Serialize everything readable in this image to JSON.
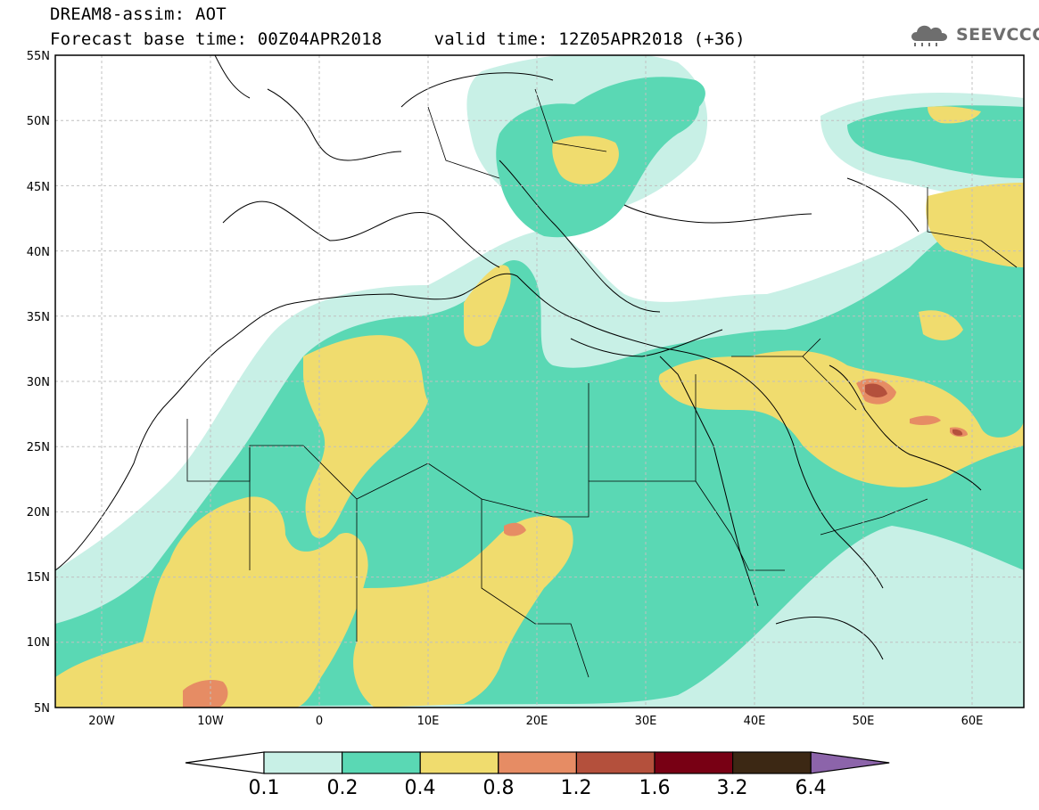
{
  "header": {
    "line1": "DREAM8-assim: AOT",
    "line2": "Forecast base time: 00Z04APR2018     valid time: 12Z05APR2018 (+36)"
  },
  "logo": {
    "text": "SEEVCCC",
    "icon": "cloud-rain-icon",
    "color": "#6e6e6e"
  },
  "axes": {
    "lat_labels": [
      "55N",
      "50N",
      "45N",
      "40N",
      "35N",
      "30N",
      "25N",
      "20N",
      "15N",
      "10N",
      "5N"
    ],
    "lon_labels": [
      "20W",
      "10W",
      "0",
      "10E",
      "20E",
      "30E",
      "40E",
      "50E",
      "60E"
    ]
  },
  "colorbar": {
    "labels": [
      "0.1",
      "0.2",
      "0.4",
      "0.8",
      "1.2",
      "1.6",
      "3.2",
      "6.4"
    ],
    "colors": [
      "#ffffff",
      "#c8f0e6",
      "#5ad8b4",
      "#f0dc6e",
      "#e68c64",
      "#b4503c",
      "#780014",
      "#3c2814",
      "#8c64aa"
    ]
  },
  "palette": {
    "level_01": "#c8f0e6",
    "level_02": "#5ad8b4",
    "level_04": "#f0dc6e",
    "level_08": "#e68c64",
    "level_12": "#b4503c",
    "coast": "#000000"
  }
}
